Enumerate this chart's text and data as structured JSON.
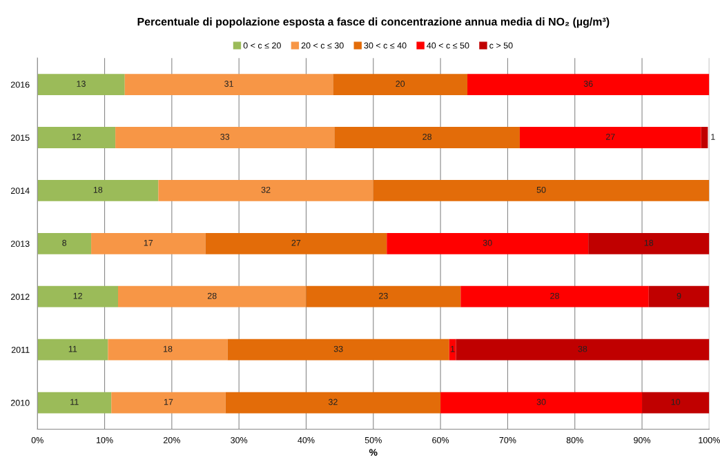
{
  "chart_data": {
    "type": "bar",
    "orientation": "horizontal",
    "stacked": true,
    "title": "Percentuale di popolazione esposta a fasce di concentrazione annua media di NO₂ (µg/m³)",
    "xlabel": "%",
    "categories": [
      "2016",
      "2015",
      "2014",
      "2013",
      "2012",
      "2011",
      "2010"
    ],
    "series": [
      {
        "name": "0 < c ≤ 20",
        "color": "#9bbb59",
        "values": [
          13,
          11.6,
          18,
          8,
          12,
          10.5,
          11
        ],
        "value_labels": [
          "13",
          "12",
          "18",
          "8",
          "12",
          "11",
          "11"
        ]
      },
      {
        "name": "20 < c ≤ 30",
        "color": "#f79646",
        "values": [
          31,
          32.6,
          32,
          17,
          28,
          17.8,
          17
        ],
        "value_labels": [
          "31",
          "33",
          "32",
          "17",
          "28",
          "18",
          "17"
        ]
      },
      {
        "name": "30 < c ≤ 40",
        "color": "#e36c09",
        "values": [
          20,
          27.6,
          50,
          27,
          23,
          33,
          32
        ],
        "value_labels": [
          "20",
          "28",
          "50",
          "27",
          "23",
          "33",
          "32"
        ]
      },
      {
        "name": "40 < c ≤ 50",
        "color": "#ff0000",
        "values": [
          36,
          27,
          null,
          30,
          28,
          1,
          30
        ],
        "value_labels": [
          "36",
          "27",
          null,
          "30",
          "28",
          "1",
          "30"
        ]
      },
      {
        "name": "c > 50",
        "color": "#c00000",
        "values": [
          null,
          1,
          null,
          18,
          9,
          37.7,
          10
        ],
        "value_labels": [
          null,
          "1",
          null,
          "18",
          "9",
          "38",
          "10"
        ]
      }
    ],
    "xlim": [
      0,
      100
    ],
    "xticks": [
      {
        "value": 0,
        "label": "0%"
      },
      {
        "value": 10,
        "label": "10%"
      },
      {
        "value": 20,
        "label": "20%"
      },
      {
        "value": 30,
        "label": "30%"
      },
      {
        "value": 40,
        "label": "40%"
      },
      {
        "value": 50,
        "label": "50%"
      },
      {
        "value": 60,
        "label": "60%"
      },
      {
        "value": 70,
        "label": "70%"
      },
      {
        "value": 80,
        "label": "80%"
      },
      {
        "value": 90,
        "label": "90%"
      },
      {
        "value": 100,
        "label": "100%"
      }
    ],
    "grid": "x",
    "legend": "top"
  }
}
